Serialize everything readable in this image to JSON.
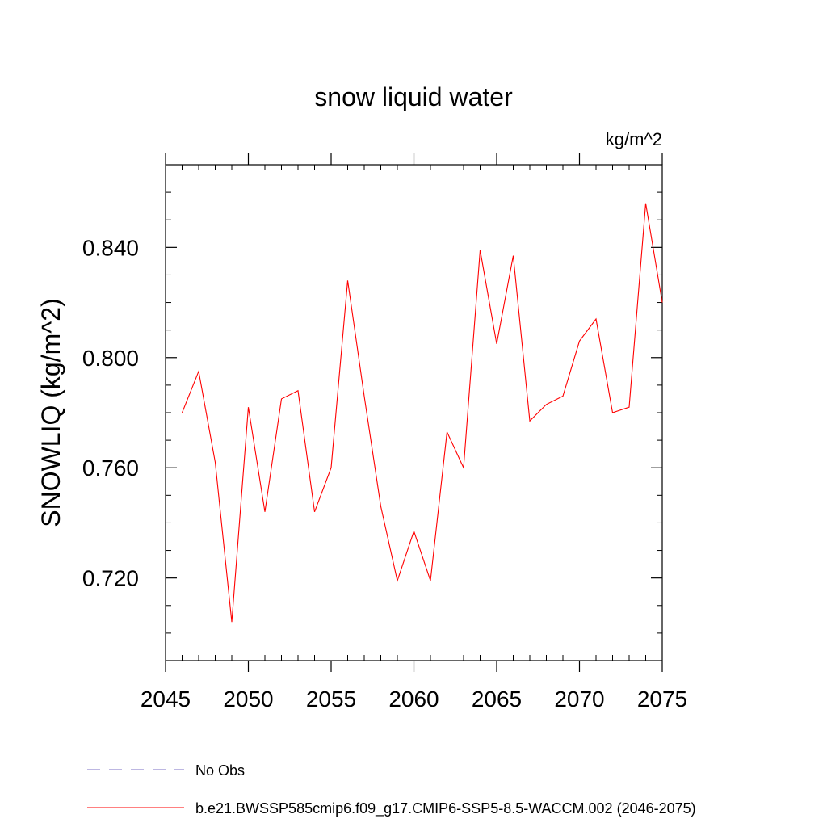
{
  "chart_data": {
    "type": "line",
    "title": "snow liquid water",
    "units_label": "kg/m^2",
    "ylabel": "SNOWLIQ  (kg/m^2)",
    "xlabel": "",
    "xlim": [
      2045,
      2075
    ],
    "ylim": [
      0.69,
      0.87
    ],
    "x_major_ticks": [
      2045,
      2050,
      2055,
      2060,
      2065,
      2070,
      2075
    ],
    "x_tick_labels": [
      "2045",
      "2050",
      "2055",
      "2060",
      "2065",
      "2070",
      "2075"
    ],
    "y_major_ticks": [
      0.72,
      0.76,
      0.8,
      0.84
    ],
    "y_tick_labels": [
      "0.720",
      "0.760",
      "0.800",
      "0.840"
    ],
    "y_minor_step": 0.01,
    "x_minor_step": 1,
    "grid": false,
    "series": [
      {
        "name": "b.e21.BWSSP585cmip6.f09_g17.CMIP6-SSP5-8.5-WACCM.002 (2046-2075)",
        "color": "#ff0000",
        "style": "solid",
        "x": [
          2046,
          2047,
          2048,
          2049,
          2050,
          2051,
          2052,
          2053,
          2054,
          2055,
          2056,
          2057,
          2058,
          2059,
          2060,
          2061,
          2062,
          2063,
          2064,
          2065,
          2066,
          2067,
          2068,
          2069,
          2070,
          2071,
          2072,
          2073,
          2074,
          2075
        ],
        "values": [
          0.78,
          0.795,
          0.762,
          0.704,
          0.782,
          0.744,
          0.785,
          0.788,
          0.744,
          0.76,
          0.828,
          0.786,
          0.746,
          0.719,
          0.737,
          0.719,
          0.773,
          0.76,
          0.839,
          0.805,
          0.837,
          0.777,
          0.783,
          0.786,
          0.806,
          0.814,
          0.78,
          0.782,
          0.856,
          0.82
        ]
      }
    ],
    "legend": [
      {
        "label": "No Obs",
        "color": "#7b6fc4",
        "style": "dashed"
      },
      {
        "label": "b.e21.BWSSP585cmip6.f09_g17.CMIP6-SSP5-8.5-WACCM.002 (2046-2075)",
        "color": "#ff0000",
        "style": "solid"
      }
    ],
    "legend_position": "bottom-left"
  }
}
